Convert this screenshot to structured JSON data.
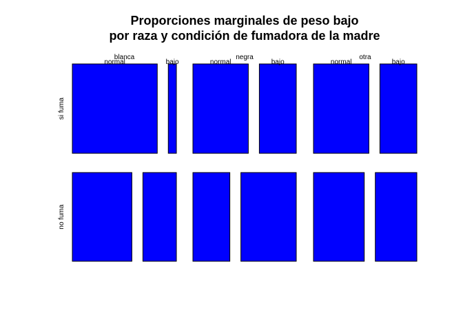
{
  "chart_data": {
    "type": "mosaic",
    "title_line1": "Proporciones marginales de peso bajo",
    "title_line2": "por raza y condición de   fumadora de la madre",
    "columns": [
      {
        "name": "blanca",
        "rows": [
          {
            "name": "si fuma",
            "categories": [
              "normal",
              "bajo"
            ],
            "proportions": [
              0.913,
              0.087
            ]
          },
          {
            "name": "no fuma",
            "categories": [
              "normal",
              "bajo"
            ],
            "proportions": [
              0.64,
              0.36
            ]
          }
        ]
      },
      {
        "name": "negra",
        "rows": [
          {
            "name": "si fuma",
            "categories": [
              "normal",
              "bajo"
            ],
            "proportions": [
              0.6,
              0.4
            ]
          },
          {
            "name": "no fuma",
            "categories": [
              "normal",
              "bajo"
            ],
            "proportions": [
              0.4,
              0.6
            ]
          }
        ]
      },
      {
        "name": "otra",
        "rows": [
          {
            "name": "si fuma",
            "categories": [
              "normal",
              "bajo"
            ],
            "proportions": [
              0.6,
              0.4
            ]
          },
          {
            "name": "no fuma",
            "categories": [
              "normal",
              "bajo"
            ],
            "proportions": [
              0.55,
              0.45
            ]
          }
        ]
      }
    ],
    "row_labels": [
      "si fuma",
      "no fuma"
    ],
    "fill_color": "#0000ff",
    "border_color": "#000000"
  }
}
